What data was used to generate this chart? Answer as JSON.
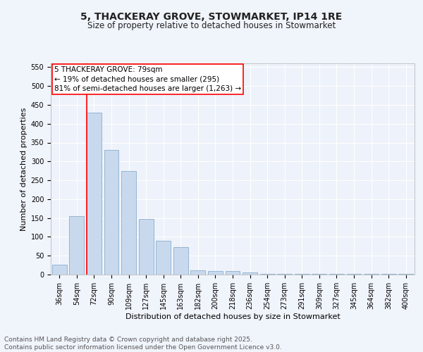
{
  "title": "5, THACKERAY GROVE, STOWMARKET, IP14 1RE",
  "subtitle": "Size of property relative to detached houses in Stowmarket",
  "xlabel": "Distribution of detached houses by size in Stowmarket",
  "ylabel": "Number of detached properties",
  "bar_color": "#c8d9ee",
  "bar_edge_color": "#8aaecc",
  "background_color": "#eef2fa",
  "grid_color": "#ffffff",
  "fig_background": "#f0f4fb",
  "categories": [
    "36sqm",
    "54sqm",
    "72sqm",
    "90sqm",
    "109sqm",
    "127sqm",
    "145sqm",
    "163sqm",
    "182sqm",
    "200sqm",
    "218sqm",
    "236sqm",
    "254sqm",
    "273sqm",
    "291sqm",
    "309sqm",
    "327sqm",
    "345sqm",
    "364sqm",
    "382sqm",
    "400sqm"
  ],
  "values": [
    27,
    155,
    430,
    330,
    275,
    148,
    90,
    72,
    12,
    10,
    10,
    5,
    2,
    1,
    1,
    1,
    1,
    1,
    1,
    1,
    2
  ],
  "ylim": [
    0,
    560
  ],
  "yticks": [
    0,
    50,
    100,
    150,
    200,
    250,
    300,
    350,
    400,
    450,
    500,
    550
  ],
  "property_line_index": 2,
  "property_label": "5 THACKERAY GROVE: 79sqm",
  "annotation_line1": "← 19% of detached houses are smaller (295)",
  "annotation_line2": "81% of semi-detached houses are larger (1,263) →",
  "footer_line1": "Contains HM Land Registry data © Crown copyright and database right 2025.",
  "footer_line2": "Contains public sector information licensed under the Open Government Licence v3.0.",
  "title_fontsize": 10,
  "subtitle_fontsize": 8.5,
  "axis_label_fontsize": 8,
  "tick_fontsize": 7,
  "annotation_fontsize": 7.5,
  "footer_fontsize": 6.5
}
